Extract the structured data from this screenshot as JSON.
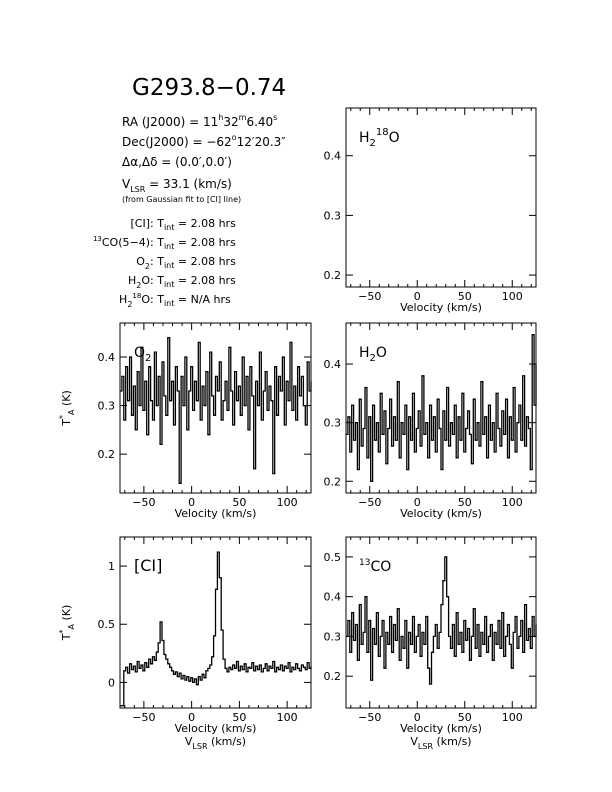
{
  "title": "G293.8−0.74",
  "info": {
    "ra": {
      "prefix": "RA (J2000) =  11",
      "h": "h",
      "mid1": "32",
      "m": "m",
      "mid2": "6.40",
      "s": "s"
    },
    "dec": {
      "prefix": "Dec(J2000) = −62",
      "deg": "o",
      "rest": "12′20.3″"
    },
    "offset": "Δα,Δδ = (0.0′,0.0′)",
    "vlsr": {
      "sym": "V",
      "sub": "LSR",
      "rest": "  = 33.1 (km/s)"
    },
    "vlsr_note": "(from Gaussian fit to [CI] line)",
    "tint_rows": [
      {
        "pre_sup": "",
        "name": "[CI]",
        "name_sub": "",
        "name_sup": "",
        "name_tail": "",
        "value": "2.08 hrs"
      },
      {
        "pre_sup": "13",
        "name": "CO(5−4)",
        "name_sub": "",
        "name_sup": "",
        "name_tail": "",
        "value": "2.08 hrs"
      },
      {
        "pre_sup": "",
        "name": "O",
        "name_sub": "2",
        "name_sup": "",
        "name_tail": "",
        "value": "2.08 hrs"
      },
      {
        "pre_sup": "",
        "name": "H",
        "name_sub": "2",
        "name_sup": "",
        "name_tail": "O",
        "value": "2.08 hrs"
      },
      {
        "pre_sup": "",
        "name": "H",
        "name_sub": "2",
        "name_sup": "18",
        "name_tail": "O",
        "value": "N/A hrs"
      }
    ],
    "tint_label": {
      "sym": "T",
      "sub": "int",
      "sep": " : ",
      "eq": " = "
    }
  },
  "chart_data": [
    {
      "id": "h2_18o",
      "type": "line",
      "label": {
        "base": "H",
        "sub": "2",
        "sup": "18",
        "tail": "O"
      },
      "xlabel": "Velocity (km/s)",
      "ylabel": "",
      "xlabel2": "",
      "xlim": [
        -75,
        125
      ],
      "ylim": [
        0.18,
        0.48
      ],
      "xticks": [
        -50,
        0,
        50,
        100
      ],
      "yticks": [
        0.2,
        0.3,
        0.4
      ],
      "x": [],
      "y": []
    },
    {
      "id": "o2",
      "type": "line",
      "label": {
        "base": "O",
        "sub": "2",
        "sup": "",
        "tail": ""
      },
      "xlabel": "Velocity (km/s)",
      "ylabel": "T*A (K)",
      "xlabel2": "",
      "xlim": [
        -75,
        125
      ],
      "ylim": [
        0.12,
        0.47
      ],
      "xticks": [
        -50,
        0,
        50,
        100
      ],
      "yticks": [
        0.2,
        0.3,
        0.4
      ],
      "x": [
        -75,
        -73,
        -71,
        -69,
        -67,
        -65,
        -63,
        -61,
        -59,
        -57,
        -55,
        -53,
        -51,
        -49,
        -47,
        -45,
        -43,
        -41,
        -39,
        -37,
        -35,
        -33,
        -31,
        -29,
        -27,
        -25,
        -23,
        -21,
        -19,
        -17,
        -15,
        -13,
        -11,
        -9,
        -7,
        -5,
        -3,
        -1,
        1,
        3,
        5,
        7,
        9,
        11,
        13,
        15,
        17,
        19,
        21,
        23,
        25,
        27,
        29,
        31,
        33,
        35,
        37,
        39,
        41,
        43,
        45,
        47,
        49,
        51,
        53,
        55,
        57,
        59,
        61,
        63,
        65,
        67,
        69,
        71,
        73,
        75,
        77,
        79,
        81,
        83,
        85,
        87,
        89,
        91,
        93,
        95,
        97,
        99,
        101,
        103,
        105,
        107,
        109,
        111,
        113,
        115,
        117,
        119,
        121,
        123,
        125
      ],
      "y": [
        0.33,
        0.36,
        0.27,
        0.38,
        0.31,
        0.4,
        0.28,
        0.34,
        0.25,
        0.37,
        0.3,
        0.42,
        0.29,
        0.35,
        0.24,
        0.38,
        0.31,
        0.27,
        0.41,
        0.3,
        0.36,
        0.22,
        0.39,
        0.32,
        0.28,
        0.44,
        0.31,
        0.35,
        0.26,
        0.38,
        0.33,
        0.14,
        0.36,
        0.3,
        0.4,
        0.25,
        0.33,
        0.38,
        0.29,
        0.35,
        0.31,
        0.43,
        0.27,
        0.34,
        0.3,
        0.37,
        0.24,
        0.41,
        0.32,
        0.28,
        0.36,
        0.33,
        0.39,
        0.27,
        0.31,
        0.35,
        0.29,
        0.42,
        0.33,
        0.26,
        0.37,
        0.31,
        0.34,
        0.28,
        0.4,
        0.3,
        0.36,
        0.25,
        0.38,
        0.32,
        0.17,
        0.35,
        0.3,
        0.41,
        0.27,
        0.33,
        0.37,
        0.29,
        0.34,
        0.31,
        0.16,
        0.38,
        0.28,
        0.36,
        0.33,
        0.4,
        0.26,
        0.35,
        0.31,
        0.43,
        0.29,
        0.34,
        0.27,
        0.38,
        0.32,
        0.36,
        0.3,
        0.26,
        0.39,
        0.33,
        0.35
      ]
    },
    {
      "id": "h2o",
      "type": "line",
      "label": {
        "base": "H",
        "sub": "2",
        "sup": "",
        "tail": "O"
      },
      "xlabel": "Velocity (km/s)",
      "ylabel": "",
      "xlabel2": "",
      "xlim": [
        -75,
        125
      ],
      "ylim": [
        0.18,
        0.47
      ],
      "xticks": [
        -50,
        0,
        50,
        100
      ],
      "yticks": [
        0.2,
        0.3,
        0.4
      ],
      "x": [
        -75,
        -73,
        -71,
        -69,
        -67,
        -65,
        -63,
        -61,
        -59,
        -57,
        -55,
        -53,
        -51,
        -49,
        -47,
        -45,
        -43,
        -41,
        -39,
        -37,
        -35,
        -33,
        -31,
        -29,
        -27,
        -25,
        -23,
        -21,
        -19,
        -17,
        -15,
        -13,
        -11,
        -9,
        -7,
        -5,
        -3,
        -1,
        1,
        3,
        5,
        7,
        9,
        11,
        13,
        15,
        17,
        19,
        21,
        23,
        25,
        27,
        29,
        31,
        33,
        35,
        37,
        39,
        41,
        43,
        45,
        47,
        49,
        51,
        53,
        55,
        57,
        59,
        61,
        63,
        65,
        67,
        69,
        71,
        73,
        75,
        77,
        79,
        81,
        83,
        85,
        87,
        89,
        91,
        93,
        95,
        97,
        99,
        101,
        103,
        105,
        107,
        109,
        111,
        113,
        115,
        117,
        119,
        121,
        123,
        125
      ],
      "y": [
        0.28,
        0.31,
        0.25,
        0.33,
        0.27,
        0.3,
        0.22,
        0.34,
        0.26,
        0.29,
        0.36,
        0.24,
        0.31,
        0.2,
        0.33,
        0.27,
        0.3,
        0.25,
        0.35,
        0.28,
        0.32,
        0.23,
        0.29,
        0.34,
        0.26,
        0.31,
        0.27,
        0.37,
        0.24,
        0.3,
        0.28,
        0.33,
        0.22,
        0.31,
        0.27,
        0.35,
        0.25,
        0.29,
        0.32,
        0.26,
        0.38,
        0.28,
        0.3,
        0.24,
        0.33,
        0.27,
        0.31,
        0.25,
        0.34,
        0.29,
        0.22,
        0.32,
        0.27,
        0.36,
        0.26,
        0.3,
        0.28,
        0.33,
        0.24,
        0.31,
        0.27,
        0.35,
        0.25,
        0.29,
        0.32,
        0.28,
        0.23,
        0.34,
        0.27,
        0.3,
        0.26,
        0.37,
        0.28,
        0.31,
        0.24,
        0.33,
        0.27,
        0.3,
        0.25,
        0.35,
        0.29,
        0.26,
        0.32,
        0.28,
        0.34,
        0.24,
        0.31,
        0.27,
        0.36,
        0.25,
        0.3,
        0.33,
        0.27,
        0.38,
        0.26,
        0.31,
        0.29,
        0.22,
        0.45,
        0.33,
        0.4
      ]
    },
    {
      "id": "ci",
      "type": "line",
      "label": {
        "base": "[CI]",
        "sub": "",
        "sup": "",
        "tail": ""
      },
      "xlabel": "Velocity (km/s)",
      "ylabel": "T*A (K)",
      "xlabel2": "VLSR (km/s)",
      "xlim": [
        -75,
        125
      ],
      "ylim": [
        -0.22,
        1.25
      ],
      "xticks": [
        -50,
        0,
        50,
        100
      ],
      "yticks": [
        0,
        0.5,
        1
      ],
      "x": [
        -75,
        -73,
        -71,
        -69,
        -67,
        -65,
        -63,
        -61,
        -59,
        -57,
        -55,
        -53,
        -51,
        -49,
        -47,
        -45,
        -43,
        -41,
        -39,
        -37,
        -35,
        -33,
        -31,
        -29,
        -27,
        -25,
        -23,
        -21,
        -19,
        -17,
        -15,
        -13,
        -11,
        -9,
        -7,
        -5,
        -3,
        -1,
        1,
        3,
        5,
        7,
        9,
        11,
        13,
        15,
        17,
        19,
        21,
        23,
        25,
        27,
        29,
        31,
        33,
        35,
        37,
        39,
        41,
        43,
        45,
        47,
        49,
        51,
        53,
        55,
        57,
        59,
        61,
        63,
        65,
        67,
        69,
        71,
        73,
        75,
        77,
        79,
        81,
        83,
        85,
        87,
        89,
        91,
        93,
        95,
        97,
        99,
        101,
        103,
        105,
        107,
        109,
        111,
        113,
        115,
        117,
        119,
        121,
        123,
        125
      ],
      "y": [
        -0.2,
        -0.2,
        0.1,
        0.13,
        0.08,
        0.16,
        0.11,
        0.14,
        0.09,
        0.18,
        0.12,
        0.15,
        0.1,
        0.17,
        0.13,
        0.2,
        0.16,
        0.22,
        0.19,
        0.26,
        0.34,
        0.52,
        0.36,
        0.24,
        0.2,
        0.16,
        0.13,
        0.1,
        0.07,
        0.09,
        0.05,
        0.08,
        0.03,
        0.06,
        0.02,
        0.05,
        0.01,
        0.04,
        0.0,
        0.03,
        -0.02,
        0.05,
        0.02,
        0.07,
        0.04,
        0.1,
        0.12,
        0.15,
        0.22,
        0.4,
        0.8,
        1.12,
        0.9,
        0.45,
        0.2,
        0.12,
        0.09,
        0.13,
        0.11,
        0.15,
        0.12,
        0.18,
        0.1,
        0.14,
        0.11,
        0.16,
        0.09,
        0.13,
        0.12,
        0.17,
        0.1,
        0.14,
        0.11,
        0.15,
        0.09,
        0.12,
        0.16,
        0.1,
        0.14,
        0.12,
        0.18,
        0.09,
        0.13,
        0.11,
        0.15,
        0.1,
        0.14,
        0.12,
        0.17,
        0.09,
        0.13,
        0.11,
        0.16,
        0.12,
        0.1,
        0.15,
        0.13,
        0.11,
        0.17,
        0.12,
        0.14
      ]
    },
    {
      "id": "co13",
      "type": "line",
      "label": {
        "base": "CO",
        "sub": "",
        "sup": "",
        "tail": "",
        "pre_sup": "13"
      },
      "xlabel": "Velocity (km/s)",
      "ylabel": "",
      "xlabel2": "VLSR (km/s)",
      "xlim": [
        -75,
        125
      ],
      "ylim": [
        0.12,
        0.55
      ],
      "xticks": [
        -50,
        0,
        50,
        100
      ],
      "yticks": [
        0.2,
        0.3,
        0.4,
        0.5
      ],
      "x": [
        -75,
        -73,
        -71,
        -69,
        -67,
        -65,
        -63,
        -61,
        -59,
        -57,
        -55,
        -53,
        -51,
        -49,
        -47,
        -45,
        -43,
        -41,
        -39,
        -37,
        -35,
        -33,
        -31,
        -29,
        -27,
        -25,
        -23,
        -21,
        -19,
        -17,
        -15,
        -13,
        -11,
        -9,
        -7,
        -5,
        -3,
        -1,
        1,
        3,
        5,
        7,
        9,
        11,
        13,
        15,
        17,
        19,
        21,
        23,
        25,
        27,
        29,
        31,
        33,
        35,
        37,
        39,
        41,
        43,
        45,
        47,
        49,
        51,
        53,
        55,
        57,
        59,
        61,
        63,
        65,
        67,
        69,
        71,
        73,
        75,
        77,
        79,
        81,
        83,
        85,
        87,
        89,
        91,
        93,
        95,
        97,
        99,
        101,
        103,
        105,
        107,
        109,
        111,
        113,
        115,
        117,
        119,
        121,
        123,
        125
      ],
      "y": [
        0.3,
        0.34,
        0.26,
        0.36,
        0.29,
        0.33,
        0.24,
        0.38,
        0.28,
        0.31,
        0.4,
        0.26,
        0.34,
        0.19,
        0.32,
        0.28,
        0.36,
        0.25,
        0.3,
        0.34,
        0.22,
        0.31,
        0.28,
        0.35,
        0.26,
        0.33,
        0.29,
        0.37,
        0.24,
        0.3,
        0.27,
        0.34,
        0.22,
        0.31,
        0.28,
        0.35,
        0.26,
        0.3,
        0.33,
        0.25,
        0.31,
        0.28,
        0.35,
        0.22,
        0.18,
        0.26,
        0.3,
        0.33,
        0.27,
        0.31,
        0.38,
        0.44,
        0.5,
        0.4,
        0.3,
        0.27,
        0.33,
        0.25,
        0.36,
        0.28,
        0.31,
        0.26,
        0.34,
        0.29,
        0.32,
        0.24,
        0.3,
        0.37,
        0.27,
        0.33,
        0.25,
        0.31,
        0.28,
        0.35,
        0.26,
        0.3,
        0.33,
        0.24,
        0.31,
        0.28,
        0.34,
        0.27,
        0.36,
        0.25,
        0.3,
        0.33,
        0.28,
        0.22,
        0.31,
        0.35,
        0.27,
        0.3,
        0.34,
        0.26,
        0.38,
        0.29,
        0.32,
        0.27,
        0.35,
        0.3,
        0.33
      ]
    }
  ]
}
